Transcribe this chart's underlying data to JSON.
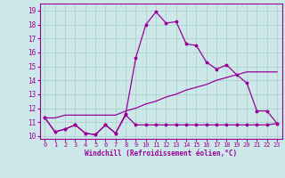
{
  "xlabel": "Windchill (Refroidissement éolien,°C)",
  "bg_color": "#cce8e8",
  "line_color": "#990099",
  "grid_color": "#aacccc",
  "hours": [
    0,
    1,
    2,
    3,
    4,
    5,
    6,
    7,
    8,
    9,
    10,
    11,
    12,
    13,
    14,
    15,
    16,
    17,
    18,
    19,
    20,
    21,
    22,
    23
  ],
  "temp": [
    11.3,
    10.3,
    10.5,
    10.8,
    10.2,
    10.1,
    10.8,
    10.2,
    11.6,
    15.6,
    18.0,
    18.9,
    18.1,
    18.2,
    16.6,
    16.5,
    15.3,
    14.8,
    15.1,
    14.4,
    13.8,
    11.8,
    11.8,
    10.9
  ],
  "windchill": [
    11.3,
    10.3,
    10.5,
    10.8,
    10.2,
    10.1,
    10.8,
    10.2,
    11.5,
    10.8,
    10.8,
    10.8,
    10.8,
    10.8,
    10.8,
    10.8,
    10.8,
    10.8,
    10.8,
    10.8,
    10.8,
    10.8,
    10.8,
    10.9
  ],
  "diag": [
    11.3,
    11.3,
    11.5,
    11.5,
    11.5,
    11.5,
    11.5,
    11.5,
    11.8,
    12.0,
    12.3,
    12.5,
    12.8,
    13.0,
    13.3,
    13.5,
    13.7,
    14.0,
    14.2,
    14.4,
    14.6,
    14.6,
    14.6,
    14.6
  ],
  "ylim": [
    9.8,
    19.5
  ],
  "xlim": [
    -0.5,
    23.5
  ]
}
